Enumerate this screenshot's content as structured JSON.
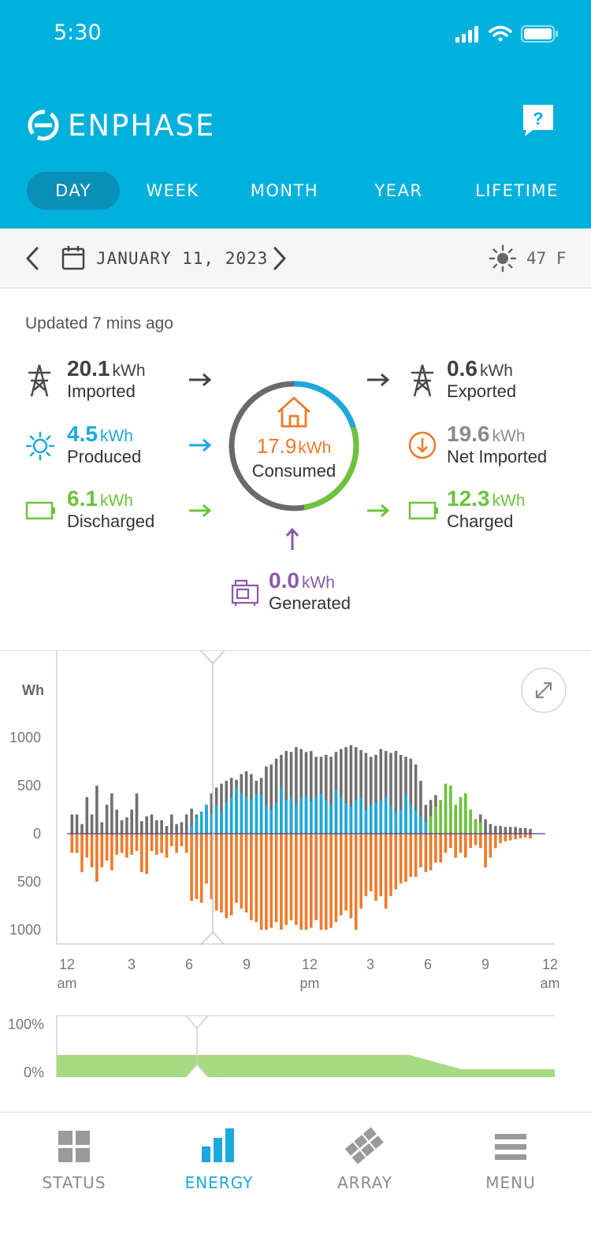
{
  "status_bar": {
    "time": "5:30"
  },
  "header": {
    "brand": "ENPHASE",
    "help_label": "?",
    "tabs": [
      {
        "label": "DAY",
        "active": true
      },
      {
        "label": "WEEK",
        "active": false
      },
      {
        "label": "MONTH",
        "active": false
      },
      {
        "label": "YEAR",
        "active": false
      },
      {
        "label": "LIFETIME",
        "active": false
      }
    ]
  },
  "date_bar": {
    "date": "JANUARY 11, 2023",
    "weather": "47 F"
  },
  "summary": {
    "updated": "Updated 7 mins ago",
    "imported": {
      "value": "20.1",
      "unit": "kWh",
      "label": "Imported"
    },
    "produced": {
      "value": "4.5",
      "unit": "kWh",
      "label": "Produced"
    },
    "discharged": {
      "value": "6.1",
      "unit": "kWh",
      "label": "Discharged"
    },
    "consumed": {
      "value": "17.9",
      "unit": "kWh",
      "label": "Consumed"
    },
    "exported": {
      "value": "0.6",
      "unit": "kWh",
      "label": "Exported"
    },
    "net_imported": {
      "value": "19.6",
      "unit": "kWh",
      "label": "Net Imported"
    },
    "charged": {
      "value": "12.3",
      "unit": "kWh",
      "label": "Charged"
    },
    "generated": {
      "value": "0.0",
      "unit": "kWh",
      "label": "Generated"
    }
  },
  "colors": {
    "header": "#00b1dd",
    "grid": "#707070",
    "solar": "#1ba9dc",
    "battery": "#6bc43c",
    "consumption": "#ef7a2a",
    "generator": "#8a5aa8"
  },
  "chart_data": [
    {
      "type": "bar",
      "ylabel": "Wh",
      "yticks": [
        "1000",
        "500",
        "0",
        "500",
        "1000"
      ],
      "ylim": [
        -1000,
        1000
      ],
      "xticks": [
        {
          "top": "12",
          "bottom": "am"
        },
        {
          "top": "3",
          "bottom": ""
        },
        {
          "top": "6",
          "bottom": ""
        },
        {
          "top": "9",
          "bottom": ""
        },
        {
          "top": "12",
          "bottom": "pm"
        },
        {
          "top": "3",
          "bottom": ""
        },
        {
          "top": "6",
          "bottom": ""
        },
        {
          "top": "9",
          "bottom": ""
        },
        {
          "top": "12",
          "bottom": "am"
        }
      ],
      "x_hours": [
        0.25,
        0.5,
        0.75,
        1,
        1.25,
        1.5,
        1.75,
        2,
        2.25,
        2.5,
        2.75,
        3,
        3.25,
        3.5,
        3.75,
        4,
        4.25,
        4.5,
        4.75,
        5,
        5.25,
        5.5,
        5.75,
        6,
        6.25,
        6.5,
        6.75,
        7,
        7.25,
        7.5,
        7.75,
        8,
        8.25,
        8.5,
        8.75,
        9,
        9.25,
        9.5,
        9.75,
        10,
        10.25,
        10.5,
        10.75,
        11,
        11.25,
        11.5,
        11.75,
        12,
        12.25,
        12.5,
        12.75,
        13,
        13.25,
        13.5,
        13.75,
        14,
        14.25,
        14.5,
        14.75,
        15,
        15.25,
        15.5,
        15.75,
        16,
        16.25,
        16.5,
        16.75,
        17,
        17.25,
        17.5,
        17.75,
        18,
        18.25,
        18.5,
        18.75,
        19,
        19.25,
        19.5,
        19.75,
        20,
        20.25,
        20.5,
        20.75,
        21,
        21.25,
        21.5,
        21.75,
        22,
        22.25,
        22.5,
        22.75,
        23,
        23.25,
        23.5,
        23.75
      ],
      "series": [
        {
          "name": "Imported",
          "color": "#707070",
          "values": [
            200,
            200,
            100,
            380,
            200,
            500,
            120,
            300,
            420,
            250,
            140,
            170,
            250,
            420,
            130,
            180,
            200,
            140,
            140,
            80,
            200,
            100,
            120,
            200,
            260,
            200,
            100,
            300,
            420,
            480,
            520,
            550,
            580,
            560,
            620,
            650,
            620,
            550,
            580,
            700,
            720,
            780,
            820,
            860,
            850,
            900,
            880,
            850,
            860,
            800,
            800,
            820,
            800,
            850,
            880,
            900,
            920,
            900,
            870,
            840,
            800,
            820,
            880,
            860,
            840,
            860,
            820,
            800,
            780,
            720,
            550,
            300,
            350,
            400,
            350,
            300,
            250,
            200,
            250,
            250,
            200,
            150,
            200,
            150,
            100,
            80,
            80,
            70,
            70,
            70,
            60,
            60,
            50
          ]
        },
        {
          "name": "Produced",
          "color": "#1ba9dc",
          "values": [
            0,
            0,
            0,
            0,
            0,
            0,
            0,
            0,
            0,
            0,
            0,
            0,
            0,
            0,
            0,
            0,
            0,
            0,
            0,
            0,
            0,
            0,
            0,
            0,
            80,
            170,
            230,
            300,
            200,
            300,
            220,
            320,
            380,
            480,
            420,
            380,
            350,
            420,
            400,
            300,
            250,
            320,
            480,
            350,
            380,
            300,
            380,
            400,
            340,
            380,
            420,
            350,
            300,
            450,
            380,
            320,
            280,
            350,
            380,
            250,
            300,
            320,
            350,
            380,
            300,
            220,
            250,
            400,
            300,
            250,
            180,
            120,
            80,
            30,
            0,
            0,
            0,
            0,
            0,
            0,
            0,
            0,
            0,
            0,
            0,
            0,
            0,
            0,
            0,
            0,
            0,
            0,
            0,
            0,
            0
          ]
        },
        {
          "name": "Discharged",
          "color": "#6bc43c",
          "values": [
            0,
            0,
            0,
            0,
            0,
            0,
            0,
            0,
            0,
            0,
            0,
            0,
            0,
            0,
            0,
            0,
            0,
            0,
            0,
            0,
            0,
            0,
            0,
            0,
            0,
            0,
            0,
            0,
            0,
            0,
            0,
            0,
            0,
            0,
            0,
            0,
            0,
            0,
            0,
            0,
            0,
            0,
            0,
            0,
            0,
            0,
            0,
            0,
            0,
            0,
            0,
            0,
            0,
            0,
            0,
            0,
            0,
            0,
            0,
            0,
            0,
            0,
            0,
            0,
            0,
            0,
            0,
            0,
            0,
            0,
            0,
            0,
            180,
            280,
            350,
            520,
            500,
            300,
            380,
            420,
            250,
            150,
            120,
            0,
            0,
            0,
            0,
            0,
            0,
            0,
            0,
            0,
            0,
            0,
            0
          ]
        },
        {
          "name": "Consumed",
          "color": "#ef7a2a",
          "values": [
            -200,
            -200,
            -400,
            -250,
            -350,
            -500,
            -350,
            -280,
            -380,
            -220,
            -200,
            -250,
            -220,
            -180,
            -400,
            -420,
            -180,
            -220,
            -200,
            -250,
            -130,
            -200,
            -130,
            -200,
            -700,
            -680,
            -720,
            -520,
            -680,
            -800,
            -820,
            -880,
            -850,
            -720,
            -780,
            -820,
            -900,
            -920,
            -1000,
            -1000,
            -980,
            -920,
            -1000,
            -950,
            -900,
            -950,
            -1000,
            -1000,
            -980,
            -900,
            -1000,
            -1000,
            -980,
            -920,
            -850,
            -800,
            -880,
            -1000,
            -780,
            -650,
            -600,
            -700,
            -650,
            -780,
            -650,
            -580,
            -520,
            -500,
            -450,
            -450,
            -350,
            -400,
            -380,
            -300,
            -300,
            -200,
            -150,
            -250,
            -200,
            -250,
            -150,
            -120,
            -150,
            -350,
            -250,
            -150,
            -100,
            -80,
            -70,
            -60,
            -50,
            -40,
            -50
          ]
        }
      ]
    },
    {
      "type": "area",
      "ylabel": "",
      "yticks": [
        "100%",
        "0%"
      ],
      "ylim": [
        0,
        100
      ],
      "series": [
        {
          "name": "",
          "color": "#a6db84",
          "points": [
            [
              0,
              36
            ],
            [
              14.5,
              36
            ],
            [
              17,
              36
            ],
            [
              19.5,
              13
            ],
            [
              24,
              13
            ]
          ]
        }
      ]
    }
  ],
  "bottom_nav": [
    {
      "label": "STATUS",
      "icon": "grid-icon",
      "active": false
    },
    {
      "label": "ENERGY",
      "icon": "bar-chart-icon",
      "active": true
    },
    {
      "label": "ARRAY",
      "icon": "panels-icon",
      "active": false
    },
    {
      "label": "MENU",
      "icon": "hamburger-icon",
      "active": false
    }
  ]
}
